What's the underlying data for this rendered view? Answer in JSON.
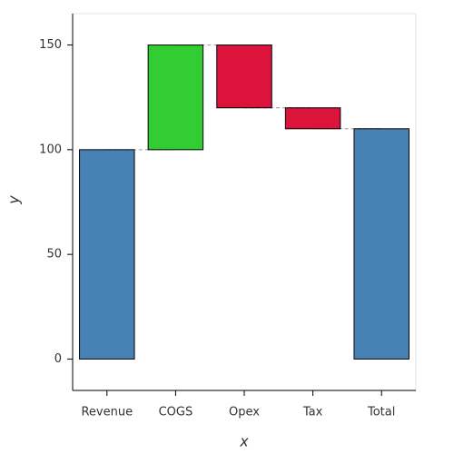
{
  "chart_data": {
    "type": "waterfall",
    "x_label": "x",
    "y_label": "y",
    "categories": [
      "Revenue",
      "COGS",
      "Opex",
      "Tax",
      "Total"
    ],
    "values": [
      100,
      50,
      -30,
      -10,
      110
    ],
    "colors": {
      "total": "#4682b4",
      "increase": "#32cd32",
      "decrease": "#dc143c"
    },
    "ylim": [
      -15,
      165
    ],
    "yticks": [
      0,
      50,
      100,
      150
    ]
  }
}
